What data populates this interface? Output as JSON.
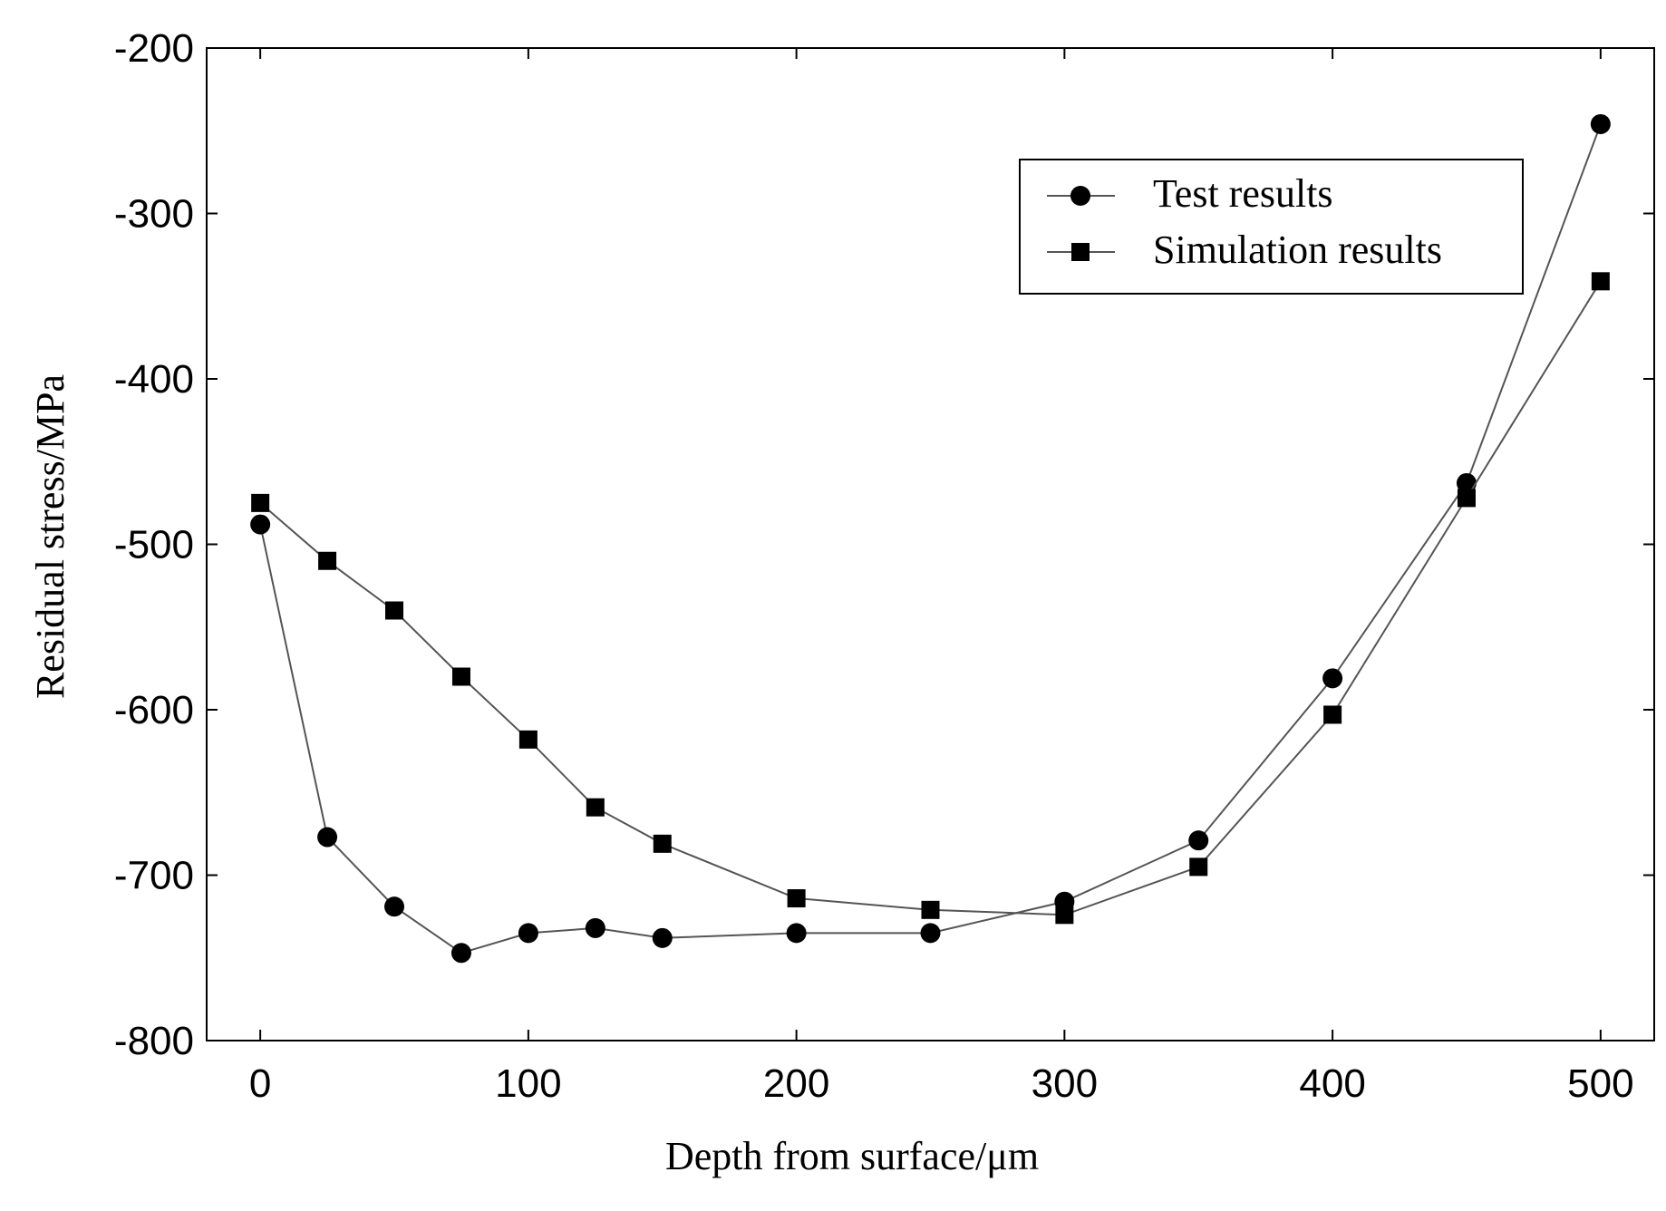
{
  "chart_data": {
    "type": "line",
    "title": "",
    "xlabel": "Depth from surface/μm",
    "ylabel": "Residual stress/MPa",
    "xlim": [
      -20,
      520
    ],
    "ylim": [
      -800,
      -200
    ],
    "xticks": [
      0,
      100,
      200,
      300,
      400,
      500
    ],
    "yticks": [
      -200,
      -300,
      -400,
      -500,
      -600,
      -700,
      -800
    ],
    "grid": false,
    "legend_position": "top-right",
    "series": [
      {
        "name": "Test  results",
        "marker": "circle",
        "x": [
          0,
          25,
          50,
          75,
          100,
          125,
          150,
          200,
          250,
          300,
          350,
          400,
          450,
          500
        ],
        "y": [
          -488,
          -677,
          -719,
          -747,
          -735,
          -732,
          -738,
          -735,
          -735,
          -716,
          -679,
          -581,
          -463,
          -246
        ]
      },
      {
        "name": "Simulation results",
        "marker": "square",
        "x": [
          0,
          25,
          50,
          75,
          100,
          125,
          150,
          200,
          250,
          300,
          350,
          400,
          450,
          500
        ],
        "y": [
          -475,
          -510,
          -540,
          -580,
          -618,
          -659,
          -681,
          -714,
          -721,
          -724,
          -695,
          -603,
          -472,
          -341
        ]
      }
    ],
    "colors": {
      "line": "#555555",
      "marker": "#000000",
      "axis": "#000000"
    }
  }
}
